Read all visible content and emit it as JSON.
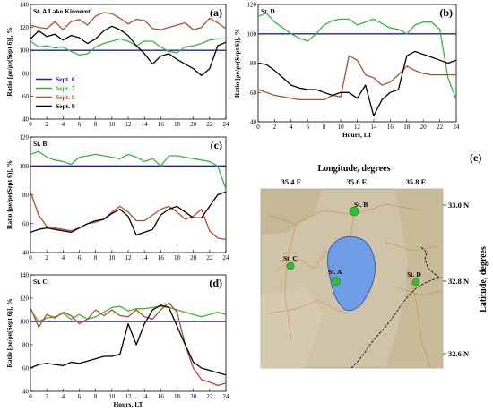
{
  "colors": {
    "baseline": "#1f1fb0",
    "sept6": "#2222cc",
    "sept7": "#3ab53a",
    "sept8": "#b84a2a",
    "sept9": "#000000",
    "lake": "#6f9ee6",
    "map_bg": "#cfc4a8",
    "station": "#2fbf2f"
  },
  "chart_data": [
    {
      "type": "line",
      "panel": "(a)",
      "title": "St. A  Lake Kinneret",
      "xlabel": "",
      "ylabel": "Ratio [ρe/ρe(Sept 6)], %",
      "xlim": [
        0,
        24
      ],
      "ylim": [
        40,
        140
      ],
      "xticks": [
        0,
        2,
        4,
        6,
        8,
        10,
        12,
        14,
        16,
        18,
        20,
        22,
        24
      ],
      "yticks": [
        40,
        60,
        80,
        100,
        120,
        140
      ],
      "legend": [
        "Sept. 6",
        "Sept. 7",
        "Sept. 8",
        "Sept. 9"
      ],
      "series": [
        {
          "name": "Sept. 6",
          "x": [
            0,
            24
          ],
          "y": [
            100,
            100
          ]
        },
        {
          "name": "Sept. 7",
          "x": [
            0,
            1,
            2,
            3,
            4,
            5,
            6,
            7,
            8,
            9,
            10,
            11,
            12,
            13,
            14,
            15,
            16,
            17,
            18,
            19,
            20,
            21,
            22,
            23,
            24
          ],
          "y": [
            108,
            103,
            104,
            102,
            103,
            99,
            96,
            97,
            103,
            106,
            108,
            110,
            108,
            104,
            108,
            108,
            103,
            99,
            98,
            103,
            104,
            106,
            109,
            110,
            110
          ]
        },
        {
          "name": "Sept. 8",
          "x": [
            0,
            1,
            2,
            3,
            4,
            5,
            6,
            7,
            8,
            9,
            10,
            11,
            12,
            13,
            14,
            15,
            16,
            17,
            18,
            19,
            20,
            21,
            22,
            23,
            24
          ],
          "y": [
            122,
            120,
            119,
            125,
            118,
            125,
            127,
            122,
            130,
            133,
            132,
            128,
            123,
            127,
            126,
            119,
            118,
            120,
            122,
            124,
            118,
            120,
            128,
            124,
            119
          ]
        },
        {
          "name": "Sept. 9",
          "x": [
            0,
            1,
            2,
            3,
            4,
            5,
            6,
            7,
            8,
            9,
            10,
            11,
            12,
            13,
            14,
            15,
            16,
            17,
            18,
            19,
            20,
            21,
            22,
            23,
            24
          ],
          "y": [
            110,
            117,
            112,
            114,
            109,
            113,
            111,
            106,
            110,
            117,
            121,
            118,
            113,
            104,
            97,
            88,
            95,
            97,
            92,
            88,
            84,
            78,
            84,
            104,
            107
          ]
        }
      ]
    },
    {
      "type": "line",
      "panel": "(b)",
      "title": "St. D",
      "xlabel": "Hours,  LT",
      "ylabel": "Ratio [ρe/ρe(Sept 6)], %",
      "xlim": [
        0,
        24
      ],
      "ylim": [
        40,
        120
      ],
      "xticks": [
        0,
        2,
        4,
        6,
        8,
        10,
        12,
        14,
        16,
        18,
        20,
        22,
        24
      ],
      "yticks": [
        40,
        60,
        80,
        100,
        120
      ],
      "series": [
        {
          "name": "Sept. 6",
          "x": [
            0,
            24
          ],
          "y": [
            100,
            100
          ]
        },
        {
          "name": "Sept. 7",
          "x": [
            0,
            1,
            2,
            3,
            4,
            5,
            6,
            7,
            8,
            9,
            10,
            11,
            12,
            13,
            14,
            15,
            16,
            17,
            18,
            19,
            20,
            21,
            22,
            23,
            24
          ],
          "y": [
            112,
            114,
            108,
            104,
            100,
            97,
            95,
            100,
            106,
            109,
            110,
            110,
            106,
            108,
            110,
            107,
            104,
            103,
            100,
            106,
            108,
            108,
            103,
            70,
            55
          ]
        },
        {
          "name": "Sept. 8",
          "x": [
            0,
            1,
            2,
            3,
            4,
            5,
            6,
            7,
            8,
            9,
            10,
            11,
            12,
            13,
            14,
            15,
            16,
            17,
            18,
            19,
            20,
            21,
            22,
            23,
            24
          ],
          "y": [
            62,
            60,
            58,
            57,
            56,
            55,
            55,
            55,
            55,
            58,
            57,
            85,
            82,
            72,
            70,
            65,
            67,
            72,
            78,
            75,
            73,
            72,
            72,
            72,
            72
          ]
        },
        {
          "name": "Sept. 9",
          "x": [
            0,
            1,
            2,
            3,
            4,
            5,
            6,
            7,
            8,
            9,
            10,
            11,
            12,
            13,
            14,
            15,
            16,
            17,
            18,
            19,
            20,
            21,
            22,
            23,
            24
          ],
          "y": [
            80,
            79,
            75,
            70,
            65,
            63,
            62,
            62,
            60,
            58,
            60,
            60,
            56,
            65,
            44,
            55,
            60,
            62,
            85,
            88,
            86,
            84,
            82,
            80,
            82
          ]
        }
      ]
    },
    {
      "type": "line",
      "panel": "(c)",
      "title": "St. B",
      "xlabel": "",
      "ylabel": "Ratio [ρe/ρe(Sept 6)], %",
      "xlim": [
        0,
        24
      ],
      "ylim": [
        40,
        120
      ],
      "xticks": [
        0,
        2,
        4,
        6,
        8,
        10,
        12,
        14,
        16,
        18,
        20,
        22,
        24
      ],
      "yticks": [
        40,
        60,
        80,
        100,
        120
      ],
      "series": [
        {
          "name": "Sept. 6",
          "x": [
            0,
            24
          ],
          "y": [
            100,
            100
          ]
        },
        {
          "name": "Sept. 7",
          "x": [
            0,
            1,
            2,
            3,
            4,
            5,
            6,
            7,
            8,
            9,
            10,
            11,
            12,
            13,
            14,
            15,
            16,
            17,
            18,
            19,
            20,
            21,
            22,
            23,
            24
          ],
          "y": [
            108,
            110,
            106,
            104,
            103,
            101,
            106,
            107,
            108,
            107,
            106,
            105,
            108,
            106,
            103,
            105,
            100,
            107,
            107,
            106,
            105,
            104,
            103,
            100,
            84
          ]
        },
        {
          "name": "Sept. 8",
          "x": [
            0,
            1,
            2,
            3,
            4,
            5,
            6,
            7,
            8,
            9,
            10,
            11,
            12,
            13,
            14,
            15,
            16,
            17,
            18,
            19,
            20,
            21,
            22,
            23,
            24
          ],
          "y": [
            82,
            66,
            58,
            57,
            56,
            55,
            57,
            60,
            61,
            63,
            68,
            72,
            68,
            62,
            62,
            66,
            70,
            72,
            68,
            63,
            65,
            70,
            55,
            50,
            49
          ]
        },
        {
          "name": "Sept. 9",
          "x": [
            0,
            1,
            2,
            3,
            4,
            5,
            6,
            7,
            8,
            9,
            10,
            11,
            12,
            13,
            14,
            15,
            16,
            17,
            18,
            19,
            20,
            21,
            22,
            23,
            24
          ],
          "y": [
            54,
            56,
            57,
            56,
            55,
            54,
            57,
            60,
            62,
            63,
            67,
            70,
            65,
            52,
            54,
            56,
            66,
            70,
            72,
            68,
            64,
            64,
            72,
            80,
            82
          ]
        }
      ]
    },
    {
      "type": "line",
      "panel": "(d)",
      "title": "St. C",
      "xlabel": "Hours,  LT",
      "ylabel": "Ratio [ρe/ρe(Sept 6)], %",
      "xlim": [
        0,
        24
      ],
      "ylim": [
        40,
        140
      ],
      "xticks": [
        0,
        2,
        4,
        6,
        8,
        10,
        12,
        14,
        16,
        18,
        20,
        22,
        24
      ],
      "yticks": [
        40,
        60,
        80,
        100,
        120,
        140
      ],
      "series": [
        {
          "name": "Sept. 6",
          "x": [
            0,
            24
          ],
          "y": [
            100,
            100
          ]
        },
        {
          "name": "Sept. 7",
          "x": [
            0,
            1,
            2,
            3,
            4,
            5,
            6,
            7,
            8,
            9,
            10,
            11,
            12,
            13,
            14,
            15,
            16,
            17,
            18,
            19,
            20,
            21,
            22,
            23,
            24
          ],
          "y": [
            110,
            100,
            103,
            104,
            107,
            102,
            106,
            102,
            104,
            108,
            112,
            113,
            109,
            111,
            111,
            112,
            113,
            112,
            110,
            108,
            106,
            104,
            106,
            108,
            106
          ]
        },
        {
          "name": "Sept. 8",
          "x": [
            0,
            1,
            2,
            3,
            4,
            5,
            6,
            7,
            8,
            9,
            10,
            11,
            12,
            13,
            14,
            15,
            16,
            17,
            18,
            19,
            20,
            21,
            22,
            23,
            24
          ],
          "y": [
            112,
            95,
            106,
            103,
            108,
            105,
            98,
            102,
            110,
            105,
            110,
            105,
            104,
            110,
            104,
            102,
            110,
            116,
            108,
            80,
            60,
            50,
            48,
            45,
            47
          ]
        },
        {
          "name": "Sept. 9",
          "x": [
            0,
            1,
            2,
            3,
            4,
            5,
            6,
            7,
            8,
            9,
            10,
            11,
            12,
            13,
            14,
            15,
            16,
            17,
            18,
            19,
            20,
            21,
            22,
            23,
            24
          ],
          "y": [
            60,
            63,
            64,
            63,
            62,
            65,
            64,
            66,
            68,
            70,
            70,
            72,
            98,
            80,
            98,
            110,
            114,
            112,
            96,
            80,
            65,
            60,
            58,
            56,
            54
          ]
        }
      ]
    }
  ],
  "map": {
    "panel": "(e)",
    "title": "Longitude,  degrees",
    "side_label": "Latitude,  degrees",
    "lon_labels": [
      "35.4 E",
      "35.6 E",
      "35.8 E"
    ],
    "lat_labels": [
      "33.0 N",
      "32.8 N",
      "32.6 N"
    ],
    "stations": [
      "St. A",
      "St. B",
      "St. C",
      "St. D"
    ]
  }
}
